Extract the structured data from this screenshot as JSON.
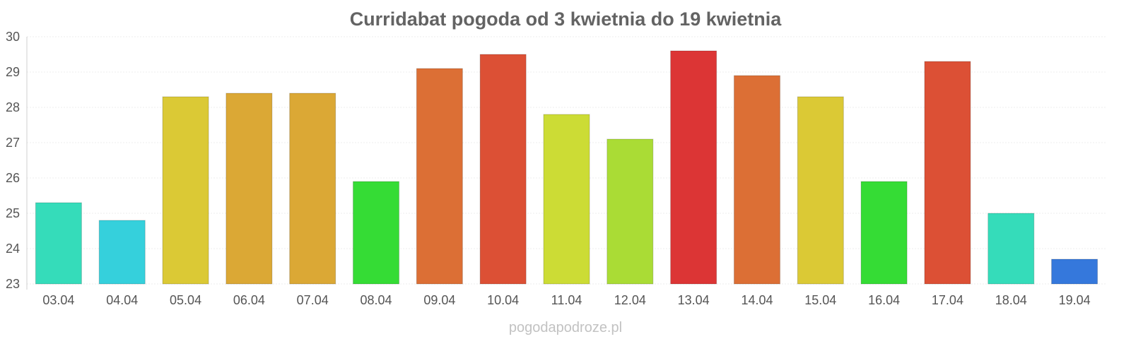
{
  "chart_data": {
    "type": "bar",
    "title": "Curridabat pogoda od 3 kwietnia do 19 kwietnia",
    "xlabel": "",
    "ylabel": "",
    "ylim": [
      23,
      30
    ],
    "yticks": [
      "23",
      "24",
      "25",
      "26",
      "27",
      "28",
      "29",
      "30"
    ],
    "grid": true,
    "categories": [
      "03.04",
      "04.04",
      "05.04",
      "06.04",
      "07.04",
      "08.04",
      "09.04",
      "10.04",
      "11.04",
      "12.04",
      "13.04",
      "14.04",
      "15.04",
      "16.04",
      "17.04",
      "18.04",
      "19.04"
    ],
    "values": [
      25.3,
      24.8,
      28.3,
      28.4,
      28.4,
      25.9,
      29.1,
      29.5,
      27.8,
      27.1,
      29.6,
      28.9,
      28.3,
      25.9,
      29.3,
      25.0,
      23.7
    ],
    "colors": [
      "#35dcba",
      "#35d0dc",
      "#dbc935",
      "#dba835",
      "#dba835",
      "#35dc35",
      "#dc6f35",
      "#dc5035",
      "#ccdc35",
      "#aadc35",
      "#dc3535",
      "#dc6f35",
      "#dbc935",
      "#35dc35",
      "#dc5035",
      "#35dcba",
      "#3578dc"
    ]
  },
  "watermark": "pogodapodroze.pl"
}
